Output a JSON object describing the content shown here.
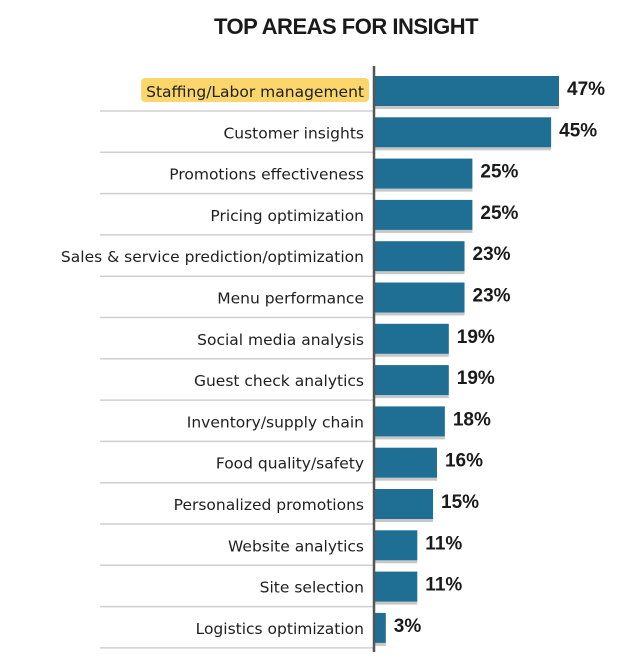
{
  "chart_data": {
    "type": "bar",
    "orientation": "horizontal",
    "title": "TOP AREAS FOR INSIGHT",
    "categories": [
      "Staffing/Labor management",
      "Customer insights",
      "Promotions effectiveness",
      "Pricing optimization",
      "Sales & service prediction/optimization",
      "Menu performance",
      "Social media analysis",
      "Guest check analytics",
      "Inventory/supply chain",
      "Food quality/safety",
      "Personalized promotions",
      "Website analytics",
      "Site selection",
      "Logistics optimization"
    ],
    "values": [
      47,
      45,
      25,
      25,
      23,
      23,
      19,
      19,
      18,
      16,
      15,
      11,
      11,
      3
    ],
    "value_labels": [
      "47%",
      "45%",
      "25%",
      "25%",
      "23%",
      "23%",
      "19%",
      "19%",
      "18%",
      "16%",
      "15%",
      "11%",
      "11%",
      "3%"
    ],
    "highlighted_category": "Staffing/Labor management",
    "xlim": [
      0,
      50
    ],
    "grid": false,
    "legend": "none",
    "colors": {
      "bar": "#1f6e94",
      "bar_shadow": "#c7c7c7",
      "highlight": "#fbd66b",
      "axis": "#555555",
      "separator": "#d0d0d0"
    }
  }
}
